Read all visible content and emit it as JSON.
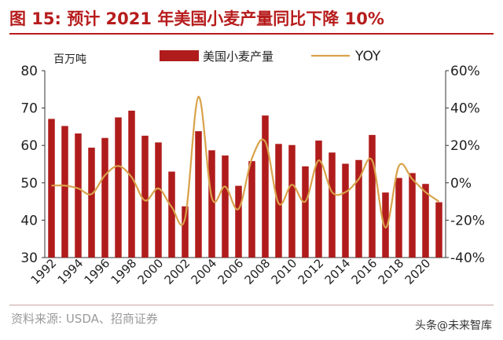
{
  "title": "图 15:  预计 2021 年美国小麦产量同比下降 10%",
  "source": "资料来源: USDA、招商证券",
  "watermark": "头条@未来智库",
  "colors": {
    "bar": "#b01c1c",
    "line": "#d9a24a",
    "title": "#b71c1c"
  },
  "chart_data": {
    "type": "bar+line",
    "unit_label": "百万吨",
    "categories": [
      "1992",
      "1993",
      "1994",
      "1995",
      "1996",
      "1997",
      "1998",
      "1999",
      "2000",
      "2001",
      "2002",
      "2003",
      "2004",
      "2005",
      "2006",
      "2007",
      "2008",
      "2009",
      "2010",
      "2011",
      "2012",
      "2013",
      "2014",
      "2015",
      "2016",
      "2017",
      "2018",
      "2019",
      "2020",
      "2021"
    ],
    "x_tick_labels": [
      "1992",
      "1994",
      "1996",
      "1998",
      "2000",
      "2002",
      "2004",
      "2006",
      "2008",
      "2010",
      "2012",
      "2014",
      "2016",
      "2018",
      "2020"
    ],
    "series": [
      {
        "name": "美国小麦产量",
        "type": "bar",
        "axis": "left",
        "values": [
          67.1,
          65.2,
          63.2,
          59.4,
          62.0,
          67.5,
          69.3,
          62.6,
          60.8,
          53.0,
          43.7,
          63.8,
          58.7,
          57.3,
          49.2,
          55.8,
          68.0,
          60.4,
          60.1,
          54.4,
          61.3,
          58.1,
          55.1,
          56.1,
          62.8,
          47.4,
          51.3,
          52.6,
          49.7,
          44.8
        ]
      },
      {
        "name": "YOY",
        "type": "line",
        "axis": "right",
        "values": [
          -1.5,
          -1.5,
          -3.0,
          -6.0,
          4.0,
          9.0,
          3.0,
          -9.5,
          -3.0,
          -13.0,
          -19.0,
          46.0,
          -8.0,
          -2.0,
          -14.0,
          13.0,
          22.0,
          -11.0,
          -1.0,
          -10.0,
          12.0,
          -5.0,
          -5.0,
          2.0,
          12.0,
          -24.0,
          9.0,
          2.0,
          -5.0,
          -10.0
        ]
      }
    ],
    "y_left": {
      "min": 30,
      "max": 80,
      "ticks": [
        30,
        40,
        50,
        60,
        70,
        80
      ]
    },
    "y_right": {
      "min": -40,
      "max": 60,
      "ticks": [
        -40,
        -20,
        0,
        20,
        40,
        60
      ],
      "tick_labels": [
        "-40%",
        "-20%",
        "0%",
        "20%",
        "40%",
        "60%"
      ]
    },
    "legend": {
      "position": "top-center",
      "entries": [
        "美国小麦产量",
        "YOY"
      ]
    },
    "grid": false
  }
}
